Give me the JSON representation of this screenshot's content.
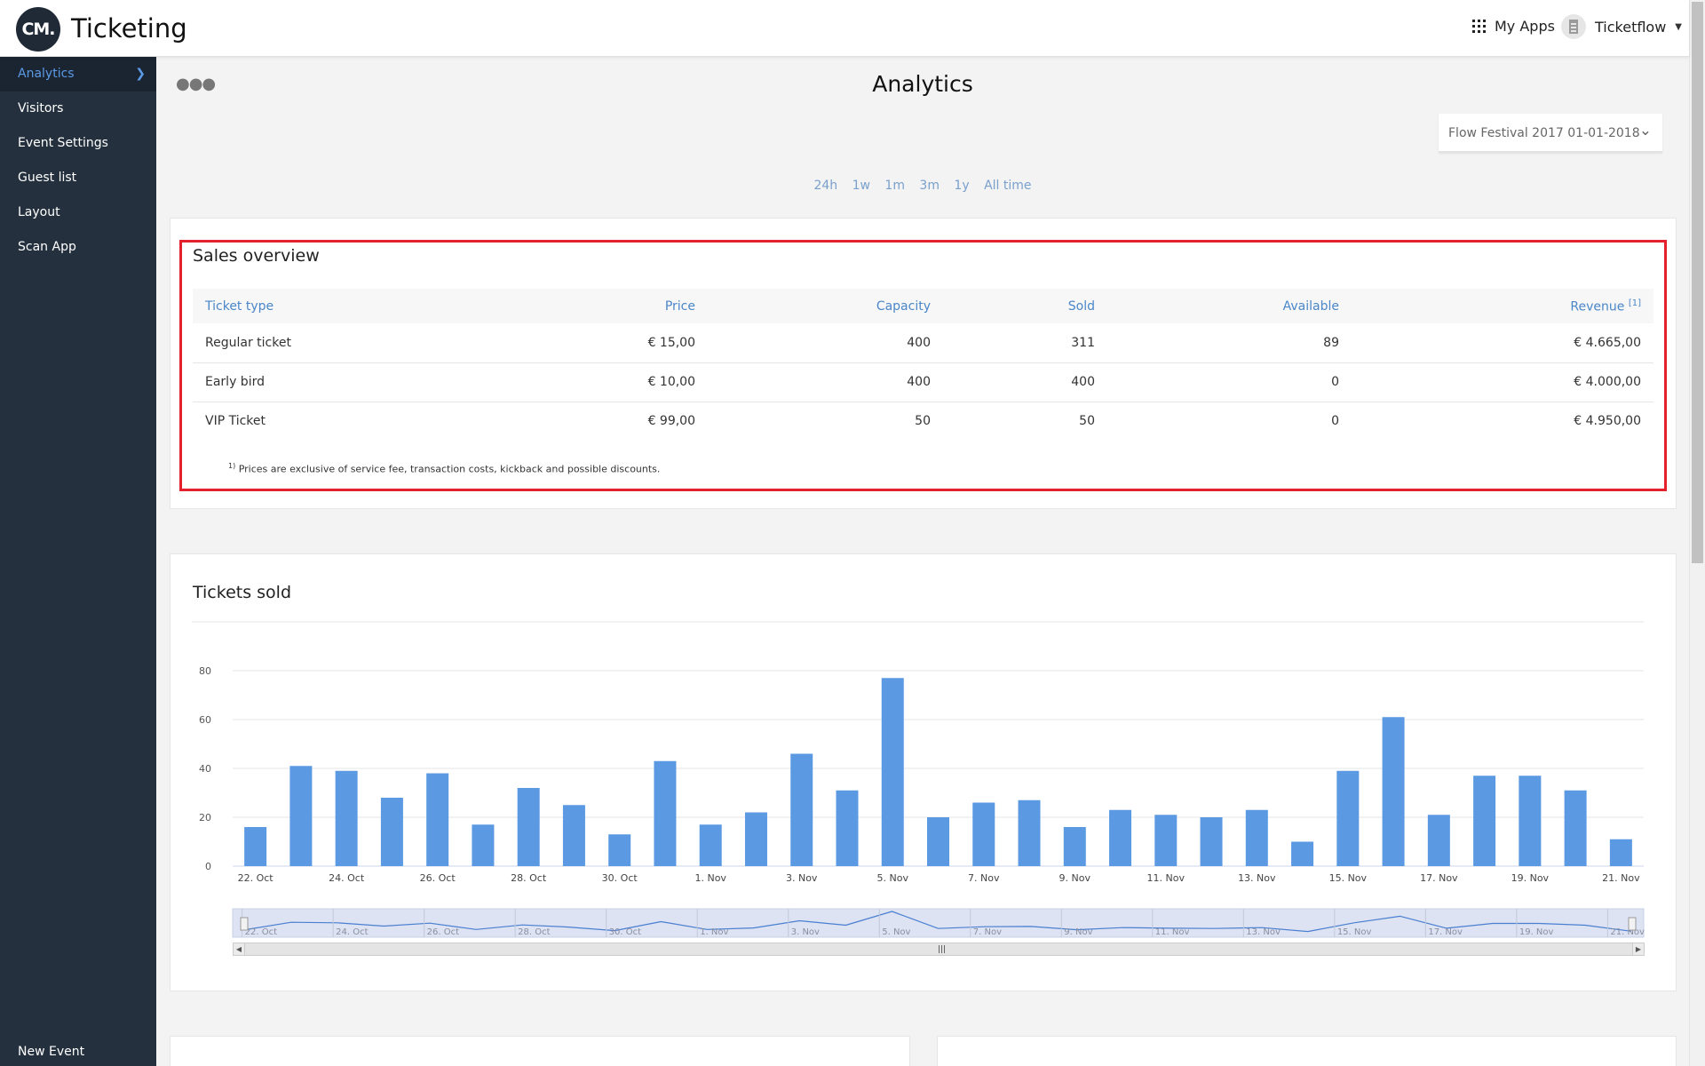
{
  "header": {
    "logo_text": "CM.",
    "app_title": "Ticketing",
    "my_apps_label": "My Apps",
    "account_label": "Ticketflow"
  },
  "sidebar": {
    "items": [
      {
        "label": "Analytics",
        "active": true
      },
      {
        "label": "Visitors"
      },
      {
        "label": "Event Settings"
      },
      {
        "label": "Guest list"
      },
      {
        "label": "Layout"
      },
      {
        "label": "Scan App"
      }
    ],
    "new_event_label": "New Event"
  },
  "page": {
    "title": "Analytics",
    "event_select_value": "Flow Festival 2017 01-01-2018",
    "ranges": [
      "24h",
      "1w",
      "1m",
      "3m",
      "1y",
      "All time"
    ]
  },
  "sales": {
    "title": "Sales overview",
    "columns": [
      "Ticket type",
      "Price",
      "Capacity",
      "Sold",
      "Available",
      "Revenue"
    ],
    "revenue_note_marker": "[1]",
    "rows": [
      [
        "Regular ticket",
        "€ 15,00",
        "400",
        "311",
        "89",
        "€ 4.665,00"
      ],
      [
        "Early bird",
        "€ 10,00",
        "400",
        "400",
        "0",
        "€ 4.000,00"
      ],
      [
        "VIP Ticket",
        "€ 99,00",
        "50",
        "50",
        "0",
        "€ 4.950,00"
      ]
    ],
    "footnote_marker": "1)",
    "footnote_text": "Prices are exclusive of service fee, transaction costs, kickback and possible discounts."
  },
  "chart_data": {
    "type": "bar",
    "title": "Tickets sold",
    "categories": [
      "22. Oct",
      "23. Oct",
      "24. Oct",
      "25. Oct",
      "26. Oct",
      "27. Oct",
      "28. Oct",
      "29. Oct",
      "30. Oct",
      "31. Oct",
      "1. Nov",
      "2. Nov",
      "3. Nov",
      "4. Nov",
      "5. Nov",
      "6. Nov",
      "7. Nov",
      "8. Nov",
      "9. Nov",
      "10. Nov",
      "11. Nov",
      "12. Nov",
      "13. Nov",
      "14. Nov",
      "15. Nov",
      "16. Nov",
      "17. Nov",
      "18. Nov",
      "19. Nov",
      "20. Nov",
      "21. Nov"
    ],
    "tick_labels": [
      "22. Oct",
      "24. Oct",
      "26. Oct",
      "28. Oct",
      "30. Oct",
      "1. Nov",
      "3. Nov",
      "5. Nov",
      "7. Nov",
      "9. Nov",
      "11. Nov",
      "13. Nov",
      "15. Nov",
      "17. Nov",
      "19. Nov",
      "21. Nov"
    ],
    "values": [
      16,
      41,
      39,
      28,
      38,
      17,
      32,
      25,
      13,
      43,
      17,
      22,
      46,
      31,
      77,
      20,
      26,
      27,
      16,
      23,
      21,
      20,
      23,
      10,
      39,
      61,
      21,
      37,
      37,
      31,
      11
    ],
    "y_ticks": [
      0,
      20,
      40,
      60,
      80
    ],
    "ylim": [
      0,
      100
    ],
    "grid": true,
    "navigator": true,
    "bar_color": "#5b9ae2"
  }
}
